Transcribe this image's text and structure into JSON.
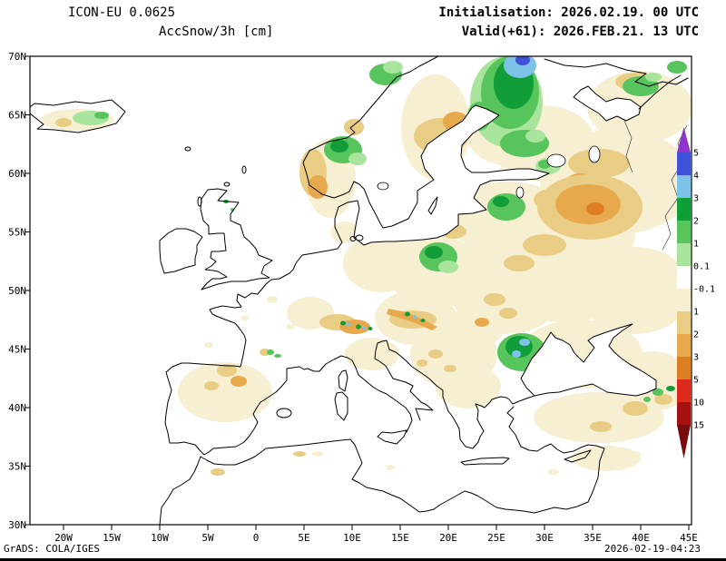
{
  "header": {
    "model": "ICON-EU 0.0625",
    "product": "AccSnow/3h [cm]",
    "init_label": "Initialisation: 2026.02.19. 00 UTC",
    "valid_label": "Valid(+61): 2026.FEB.21. 13 UTC"
  },
  "axes": {
    "lat_ticks": [
      "70N",
      "65N",
      "60N",
      "55N",
      "50N",
      "45N",
      "40N",
      "35N",
      "30N"
    ],
    "lon_ticks": [
      "20W",
      "15W",
      "10W",
      "5W",
      "0",
      "5E",
      "10E",
      "15E",
      "20E",
      "25E",
      "30E",
      "35E",
      "40E",
      "45E"
    ]
  },
  "colorbar": {
    "unit": "cm",
    "labels": [
      "5",
      "4",
      "3",
      "2",
      "1",
      "0.1",
      "-0.1",
      "1",
      "2",
      "3",
      "5",
      "10",
      "15"
    ],
    "segment_colors": [
      "#3f51d9",
      "#7fc2e8",
      "#119e38",
      "#57c45c",
      "#a9e49c",
      "#ffffff",
      "#f6efd2",
      "#e9cd84",
      "#e8a84c",
      "#dd7d26",
      "#dc2a1c",
      "#a31111"
    ],
    "arrow_top_color": "#8d35cc",
    "arrow_bottom_color": "#7a0b0b"
  },
  "footer": {
    "left": "GrADS: COLA/IGES",
    "right": "2026-02-19-04:23"
  },
  "palette": {
    "cream": "#f6efd2",
    "tan": "#e9cd84",
    "orange": "#e8a84c",
    "dorange": "#dd7d26",
    "red": "#dc2a1c",
    "dred": "#a31111",
    "green_l": "#a9e49c",
    "green_m": "#57c45c",
    "green_d": "#119e38",
    "blue_l": "#7fc2e8",
    "blue_m": "#3f51d9",
    "purple": "#8d35cc",
    "maroon": "#7a0b0b"
  }
}
